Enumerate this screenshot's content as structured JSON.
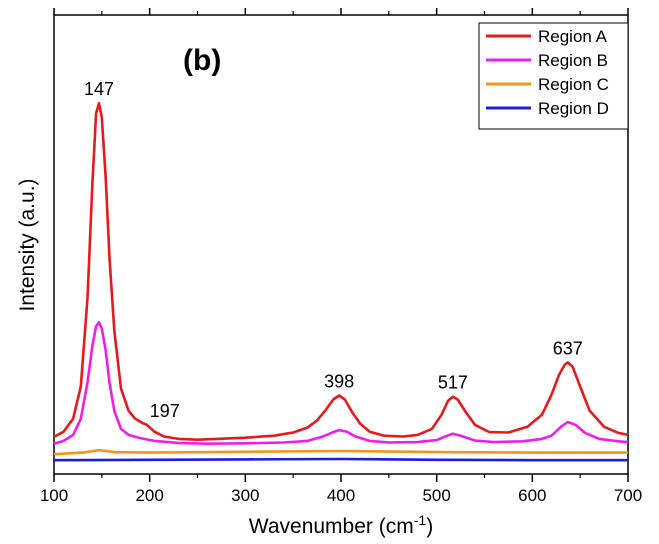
{
  "chart_data": {
    "type": "line",
    "panel_label": "(b)",
    "xlabel": "Wavenumber (cm",
    "xlabel_sup": "-1",
    "xlabel_tail": ")",
    "ylabel": "Intensity (a.u.)",
    "xlim": [
      100,
      700
    ],
    "ylim": [
      0,
      1
    ],
    "x_ticks": [
      100,
      200,
      300,
      400,
      500,
      600,
      700
    ],
    "x_tick_labels": [
      "100",
      "200",
      "300",
      "400",
      "500",
      "600",
      "700"
    ],
    "y_tick_labels_visible": false,
    "legend_position": "top-right",
    "series": [
      {
        "name": "Region A",
        "color": "#e8191c",
        "x": [
          100,
          110,
          120,
          128,
          135,
          140,
          144,
          147,
          150,
          154,
          158,
          163,
          170,
          178,
          185,
          192,
          197,
          205,
          215,
          230,
          250,
          270,
          300,
          330,
          350,
          365,
          375,
          385,
          392,
          398,
          404,
          412,
          420,
          430,
          445,
          465,
          480,
          495,
          505,
          512,
          517,
          522,
          530,
          540,
          555,
          575,
          595,
          610,
          620,
          628,
          634,
          637,
          642,
          650,
          660,
          675,
          690,
          700
        ],
        "y": [
          0.055,
          0.068,
          0.1,
          0.18,
          0.4,
          0.68,
          0.86,
          0.885,
          0.85,
          0.7,
          0.5,
          0.32,
          0.175,
          0.12,
          0.1,
          0.09,
          0.085,
          0.068,
          0.056,
          0.05,
          0.048,
          0.05,
          0.053,
          0.058,
          0.066,
          0.078,
          0.096,
          0.125,
          0.148,
          0.158,
          0.148,
          0.115,
          0.088,
          0.068,
          0.058,
          0.056,
          0.06,
          0.075,
          0.11,
          0.145,
          0.155,
          0.148,
          0.118,
          0.085,
          0.067,
          0.066,
          0.08,
          0.11,
          0.16,
          0.21,
          0.235,
          0.24,
          0.23,
          0.18,
          0.12,
          0.08,
          0.065,
          0.06
        ]
      },
      {
        "name": "Region B",
        "color": "#ee1cee",
        "x": [
          100,
          110,
          120,
          128,
          135,
          140,
          144,
          147,
          150,
          154,
          158,
          163,
          170,
          178,
          190,
          205,
          230,
          260,
          300,
          340,
          365,
          380,
          390,
          398,
          406,
          415,
          430,
          450,
          480,
          500,
          510,
          517,
          525,
          540,
          560,
          590,
          610,
          620,
          630,
          637,
          645,
          655,
          670,
          690,
          700
        ],
        "y": [
          0.038,
          0.045,
          0.06,
          0.1,
          0.19,
          0.28,
          0.33,
          0.34,
          0.325,
          0.27,
          0.19,
          0.12,
          0.075,
          0.06,
          0.052,
          0.045,
          0.04,
          0.038,
          0.039,
          0.041,
          0.045,
          0.055,
          0.065,
          0.072,
          0.068,
          0.056,
          0.045,
          0.041,
          0.042,
          0.047,
          0.057,
          0.063,
          0.058,
          0.046,
          0.042,
          0.044,
          0.05,
          0.058,
          0.08,
          0.092,
          0.085,
          0.065,
          0.05,
          0.044,
          0.042
        ]
      },
      {
        "name": "Region C",
        "color": "#f7921c",
        "x": [
          100,
          130,
          147,
          165,
          200,
          300,
          400,
          480,
          520,
          600,
          700
        ],
        "y": [
          0.012,
          0.016,
          0.022,
          0.017,
          0.016,
          0.018,
          0.02,
          0.018,
          0.017,
          0.016,
          0.016
        ]
      },
      {
        "name": "Region D",
        "color": "#1c1cdc",
        "x": [
          100,
          200,
          300,
          400,
          500,
          600,
          700
        ],
        "y": [
          -0.003,
          -0.002,
          -0.001,
          0.0,
          -0.002,
          -0.003,
          -0.003
        ]
      }
    ],
    "annotations": [
      {
        "text": "147",
        "x": 147,
        "y": 0.885
      },
      {
        "text": "197",
        "x": 197,
        "y": 0.085
      },
      {
        "text": "398",
        "x": 398,
        "y": 0.158
      },
      {
        "text": "517",
        "x": 517,
        "y": 0.155
      },
      {
        "text": "637",
        "x": 637,
        "y": 0.24
      }
    ]
  }
}
